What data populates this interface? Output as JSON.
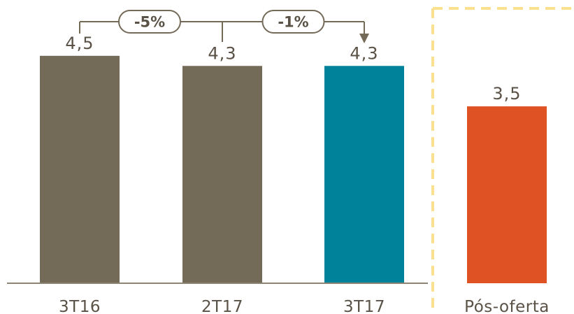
{
  "chart_data": {
    "type": "bar",
    "categories": [
      "3T16",
      "2T17",
      "3T17",
      "Pós-oferta"
    ],
    "values": [
      4.5,
      4.3,
      4.3,
      3.5
    ],
    "value_labels": [
      "4,5",
      "4,3",
      "4,3",
      "3,5"
    ],
    "bar_colors": [
      "#736a58",
      "#736a58",
      "#00829a",
      "#de5224"
    ],
    "title": "",
    "xlabel": "",
    "ylabel": "",
    "ylim": [
      0,
      5.3
    ],
    "grid": false,
    "changes": [
      {
        "from": "3T16",
        "to": "2T17",
        "label": "-5%"
      },
      {
        "from": "2T17",
        "to": "3T17",
        "label": "-1%"
      }
    ],
    "separator_before": "Pós-oferta"
  },
  "colors": {
    "axis": "#8c8576",
    "text": "#5a5246",
    "bracket": "#736a58",
    "separator": "#fbe08f"
  }
}
